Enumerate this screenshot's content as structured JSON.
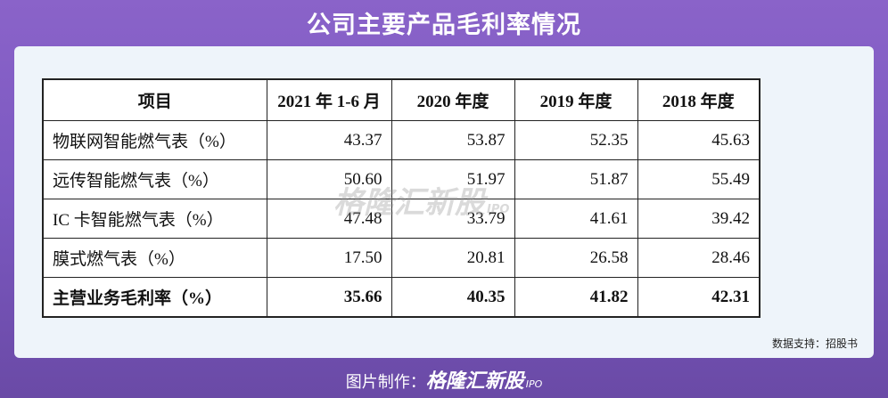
{
  "header": {
    "title": "公司主要产品毛利率情况"
  },
  "table": {
    "columns": [
      "项目",
      "2021 年 1-6 月",
      "2020 年度",
      "2019 年度",
      "2018 年度"
    ],
    "rows": [
      [
        "物联网智能燃气表（%）",
        "43.37",
        "53.87",
        "52.35",
        "45.63"
      ],
      [
        "远传智能燃气表（%）",
        "50.60",
        "51.97",
        "51.87",
        "55.49"
      ],
      [
        "IC 卡智能燃气表（%）",
        "47.48",
        "33.79",
        "41.61",
        "39.42"
      ],
      [
        "膜式燃气表（%）",
        "17.50",
        "20.81",
        "26.58",
        "28.46"
      ],
      [
        "主营业务毛利率（%）",
        "35.66",
        "40.35",
        "41.82",
        "42.31"
      ]
    ]
  },
  "watermark": {
    "brand": "格隆汇新股",
    "tag": "IPO"
  },
  "source": "数据支持：招股书",
  "footer": {
    "label": "图片制作：",
    "brand": "格隆汇新股",
    "tag": "IPO"
  }
}
